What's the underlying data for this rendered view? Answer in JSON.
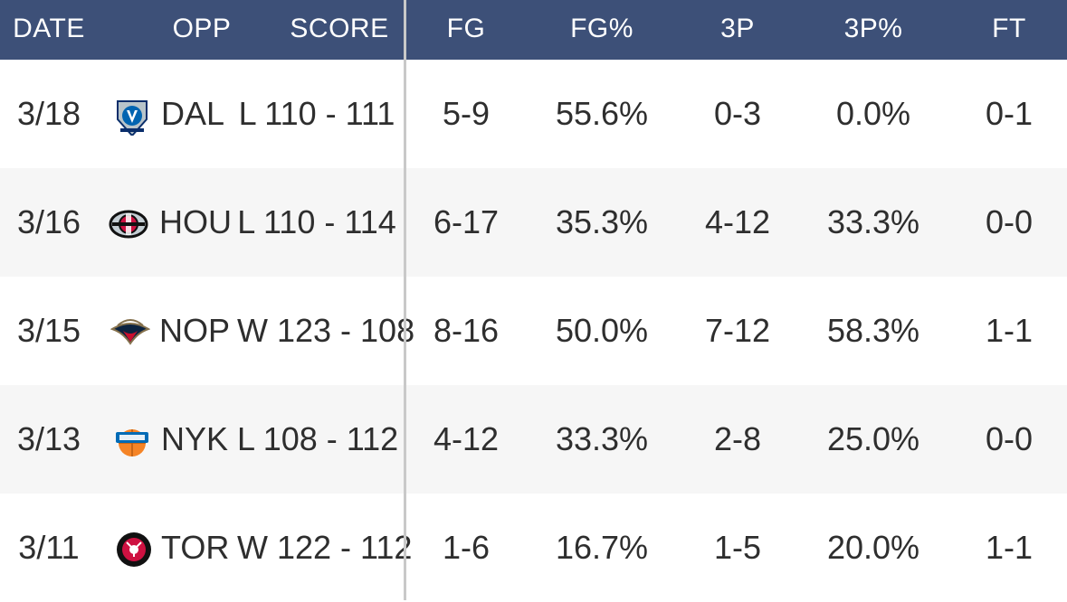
{
  "header": {
    "date": "DATE",
    "opp": "OPP",
    "score": "SCORE",
    "fg": "FG",
    "fg_pct": "FG%",
    "three_p": "3P",
    "three_p_pct": "3P%",
    "ft": "FT"
  },
  "rows": [
    {
      "date": "3/18",
      "logo_icon": "mavericks-logo-icon",
      "opp": "DAL",
      "score": "L 110 - 111",
      "fg": "5-9",
      "fg_pct": "55.6%",
      "three_p": "0-3",
      "three_p_pct": "0.0%",
      "ft": "0-1"
    },
    {
      "date": "3/16",
      "logo_icon": "rockets-logo-icon",
      "opp": "HOU",
      "score": "L 110 - 114",
      "fg": "6-17",
      "fg_pct": "35.3%",
      "three_p": "4-12",
      "three_p_pct": "33.3%",
      "ft": "0-0"
    },
    {
      "date": "3/15",
      "logo_icon": "pelicans-logo-icon",
      "opp": "NOP",
      "score": "W 123 - 108",
      "fg": "8-16",
      "fg_pct": "50.0%",
      "three_p": "7-12",
      "three_p_pct": "58.3%",
      "ft": "1-1"
    },
    {
      "date": "3/13",
      "logo_icon": "knicks-logo-icon",
      "opp": "NYK",
      "score": "L 108 - 112",
      "fg": "4-12",
      "fg_pct": "33.3%",
      "three_p": "2-8",
      "three_p_pct": "25.0%",
      "ft": "0-0"
    },
    {
      "date": "3/11",
      "logo_icon": "raptors-logo-icon",
      "opp": "TOR",
      "score": "W 122 - 112",
      "fg": "1-6",
      "fg_pct": "16.7%",
      "three_p": "1-5",
      "three_p_pct": "20.0%",
      "ft": "1-1"
    }
  ],
  "colors": {
    "header_bg": "#3d5078",
    "header_text": "#ffffff",
    "row_alt_bg": "#f6f6f6",
    "divider": "#c9c9c9",
    "text": "#2e2e2e"
  }
}
